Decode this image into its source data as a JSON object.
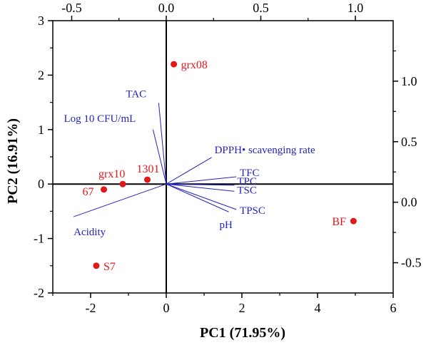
{
  "chart_data": {
    "type": "scatter",
    "subtype": "biplot",
    "xlabel": "PC1 (71.95%)",
    "ylabel": "PC2 (16.91%)",
    "xlim": [
      -3,
      6
    ],
    "ylim": [
      -2,
      3
    ],
    "xticks": [
      -2,
      0,
      2,
      4,
      6
    ],
    "yticks": [
      -2,
      -1,
      0,
      1,
      2,
      3
    ],
    "top_xlim": [
      -0.6,
      1.2
    ],
    "top_xticks": [
      -0.5,
      0.0,
      0.5,
      1.0
    ],
    "top_tick_labels": [
      "-0.5",
      "0.0",
      "0.5",
      "1.0"
    ],
    "right_ylim": [
      -0.75,
      1.5
    ],
    "right_yticks": [
      -0.5,
      0.0,
      0.5,
      1.0
    ],
    "right_tick_labels": [
      "-0.5",
      "0.0",
      "0.5",
      "1.0"
    ],
    "grid": false,
    "zero_lines": true,
    "score_color": "#e0191b",
    "loading_color": "#2323c0",
    "scores": [
      {
        "label": "grx08",
        "x": 0.2,
        "y": 2.2
      },
      {
        "label": "grx10",
        "x": -1.15,
        "y": 0.0
      },
      {
        "label": "1301",
        "x": -0.5,
        "y": 0.08
      },
      {
        "label": "67",
        "x": -1.65,
        "y": -0.1
      },
      {
        "label": "S7",
        "x": -1.85,
        "y": -1.5
      },
      {
        "label": "BF",
        "x": 4.95,
        "y": -0.68
      }
    ],
    "loadings": [
      {
        "label": "TAC",
        "x": -0.04,
        "y": 0.82
      },
      {
        "label": "Log 10 CFU/mL",
        "x": -0.07,
        "y": 0.6
      },
      {
        "label": "DPPH• scavenging rate",
        "x": 0.24,
        "y": 0.37
      },
      {
        "label": "TFC",
        "x": 0.37,
        "y": 0.21
      },
      {
        "label": "TPC",
        "x": 0.36,
        "y": 0.14
      },
      {
        "label": "TSC",
        "x": 0.36,
        "y": 0.09
      },
      {
        "label": "TPSC",
        "x": 0.37,
        "y": -0.06
      },
      {
        "label": "pH",
        "x": 0.33,
        "y": -0.08
      },
      {
        "label": "Acidity",
        "x": -0.49,
        "y": -0.12
      }
    ]
  }
}
